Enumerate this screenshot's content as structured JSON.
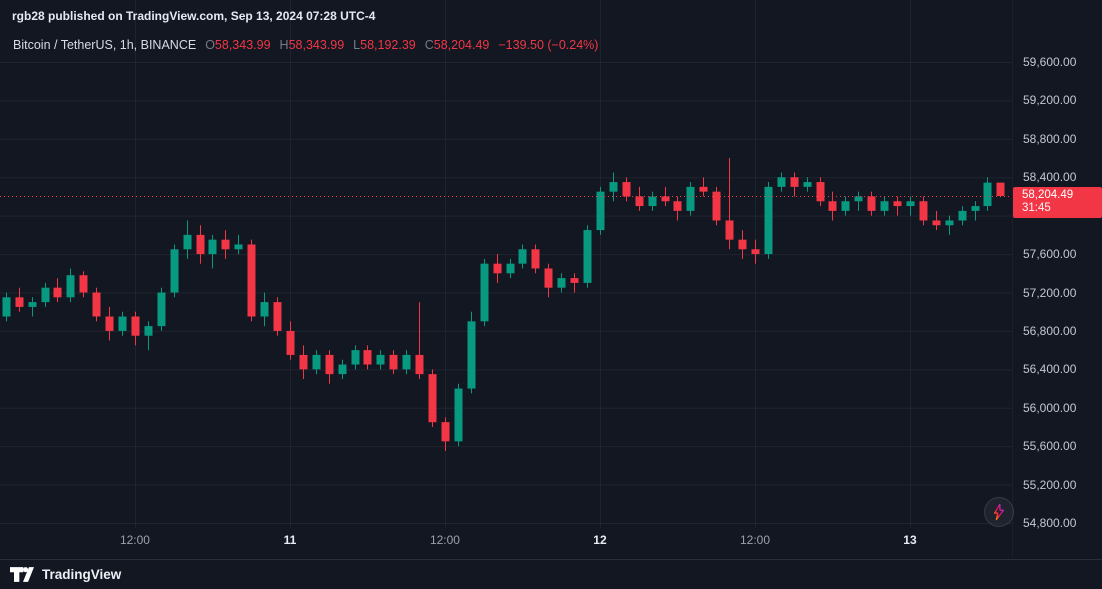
{
  "attribution": {
    "text": "rgb28 published on TradingView.com, Sep 13, 2024 07:28 UTC-4"
  },
  "legend": {
    "symbol": "Bitcoin / TetherUS, 1h, BINANCE",
    "ohlc": [
      {
        "label": "O",
        "value": "58,343.99"
      },
      {
        "label": "H",
        "value": "58,343.99"
      },
      {
        "label": "L",
        "value": "58,192.39"
      },
      {
        "label": "C",
        "value": "58,204.49"
      }
    ],
    "change": "−139.50 (−0.24%)"
  },
  "price_badge": {
    "price": "58,204.49",
    "countdown": "31:45"
  },
  "footer": {
    "brand": "TradingView"
  },
  "colors": {
    "background": "#131722",
    "grid": "rgba(240,243,250,0.06)",
    "up": "#089981",
    "down": "#f23645",
    "axis_text": "#c3c7d1",
    "badge_bg": "#f23645"
  },
  "chart_data": {
    "type": "candlestick",
    "title": "Bitcoin / TetherUS, 1h, BINANCE",
    "pair": "Bitcoin / TetherUS",
    "interval": "1h",
    "exchange": "BINANCE",
    "start_time": "Sep 10 02:00",
    "step_minutes": 60,
    "current_price": 58204.49,
    "last_candle": {
      "open": 58343.99,
      "high": 58343.99,
      "low": 58192.39,
      "close": 58204.49,
      "change": "−139.50",
      "change_pct": "−0.24%"
    },
    "y_axis": {
      "min": 54800,
      "max": 59600,
      "tick_step": 400,
      "labels": [
        {
          "text": "59,600.00",
          "value": 59600
        },
        {
          "text": "59,200.00",
          "value": 59200
        },
        {
          "text": "58,800.00",
          "value": 58800
        },
        {
          "text": "58,400.00",
          "value": 58400
        },
        {
          "text": "57,600.00",
          "value": 57600
        },
        {
          "text": "57,200.00",
          "value": 57200
        },
        {
          "text": "56,800.00",
          "value": 56800
        },
        {
          "text": "56,400.00",
          "value": 56400
        },
        {
          "text": "56,000.00",
          "value": 56000
        },
        {
          "text": "55,600.00",
          "value": 55600
        },
        {
          "text": "55,200.00",
          "value": 55200
        },
        {
          "text": "54,800.00",
          "value": 54800
        }
      ]
    },
    "x_axis": {
      "ticks": [
        {
          "text": "12:00",
          "index": 10,
          "major": false
        },
        {
          "text": "11",
          "index": 22,
          "major": true
        },
        {
          "text": "12:00",
          "index": 34,
          "major": false
        },
        {
          "text": "12",
          "index": 46,
          "major": true
        },
        {
          "text": "12:00",
          "index": 58,
          "major": false
        },
        {
          "text": "13",
          "index": 70,
          "major": true
        }
      ]
    },
    "ohlc": [
      [
        56950,
        57200,
        56900,
        57150
      ],
      [
        57150,
        57250,
        57000,
        57050
      ],
      [
        57050,
        57150,
        56950,
        57100
      ],
      [
        57100,
        57300,
        57050,
        57250
      ],
      [
        57250,
        57350,
        57100,
        57150
      ],
      [
        57150,
        57450,
        57100,
        57380
      ],
      [
        57380,
        57420,
        57150,
        57200
      ],
      [
        57200,
        57250,
        56900,
        56950
      ],
      [
        56950,
        57050,
        56700,
        56800
      ],
      [
        56800,
        57000,
        56750,
        56950
      ],
      [
        56950,
        57000,
        56650,
        56750
      ],
      [
        56750,
        56900,
        56600,
        56850
      ],
      [
        56850,
        57250,
        56800,
        57200
      ],
      [
        57200,
        57700,
        57150,
        57650
      ],
      [
        57650,
        57950,
        57550,
        57800
      ],
      [
        57800,
        57900,
        57500,
        57600
      ],
      [
        57600,
        57800,
        57450,
        57750
      ],
      [
        57750,
        57850,
        57550,
        57650
      ],
      [
        57650,
        57800,
        57600,
        57700
      ],
      [
        57700,
        57750,
        56900,
        56950
      ],
      [
        56950,
        57200,
        56850,
        57100
      ],
      [
        57100,
        57150,
        56750,
        56800
      ],
      [
        56800,
        56900,
        56500,
        56550
      ],
      [
        56550,
        56650,
        56300,
        56400
      ],
      [
        56400,
        56600,
        56350,
        56550
      ],
      [
        56550,
        56600,
        56250,
        56350
      ],
      [
        56350,
        56500,
        56300,
        56450
      ],
      [
        56450,
        56650,
        56400,
        56600
      ],
      [
        56600,
        56650,
        56400,
        56450
      ],
      [
        56450,
        56600,
        56400,
        56550
      ],
      [
        56550,
        56600,
        56350,
        56400
      ],
      [
        56400,
        56600,
        56350,
        56550
      ],
      [
        56550,
        57100,
        56300,
        56350
      ],
      [
        56350,
        56400,
        55800,
        55850
      ],
      [
        55850,
        55900,
        55550,
        55650
      ],
      [
        55650,
        56250,
        55600,
        56200
      ],
      [
        56200,
        57000,
        56150,
        56900
      ],
      [
        56900,
        57550,
        56850,
        57500
      ],
      [
        57500,
        57600,
        57300,
        57400
      ],
      [
        57400,
        57550,
        57350,
        57500
      ],
      [
        57500,
        57700,
        57450,
        57650
      ],
      [
        57650,
        57700,
        57400,
        57450
      ],
      [
        57450,
        57500,
        57150,
        57250
      ],
      [
        57250,
        57400,
        57200,
        57350
      ],
      [
        57350,
        57400,
        57200,
        57300
      ],
      [
        57300,
        57900,
        57250,
        57850
      ],
      [
        57850,
        58300,
        57800,
        58250
      ],
      [
        58250,
        58450,
        58150,
        58350
      ],
      [
        58350,
        58400,
        58150,
        58200
      ],
      [
        58200,
        58300,
        58050,
        58100
      ],
      [
        58100,
        58250,
        58050,
        58200
      ],
      [
        58200,
        58300,
        58100,
        58150
      ],
      [
        58150,
        58200,
        57950,
        58050
      ],
      [
        58050,
        58350,
        58000,
        58300
      ],
      [
        58300,
        58400,
        58200,
        58250
      ],
      [
        58250,
        58300,
        57900,
        57950
      ],
      [
        57950,
        58600,
        57650,
        57750
      ],
      [
        57750,
        57850,
        57550,
        57650
      ],
      [
        57650,
        57750,
        57500,
        57600
      ],
      [
        57600,
        58350,
        57550,
        58300
      ],
      [
        58300,
        58450,
        58250,
        58400
      ],
      [
        58400,
        58450,
        58200,
        58300
      ],
      [
        58300,
        58400,
        58250,
        58350
      ],
      [
        58350,
        58400,
        58100,
        58150
      ],
      [
        58150,
        58250,
        57950,
        58050
      ],
      [
        58050,
        58200,
        58000,
        58150
      ],
      [
        58150,
        58250,
        58050,
        58200
      ],
      [
        58200,
        58250,
        58000,
        58050
      ],
      [
        58050,
        58200,
        58000,
        58150
      ],
      [
        58150,
        58200,
        58000,
        58100
      ],
      [
        58100,
        58200,
        58000,
        58150
      ],
      [
        58150,
        58200,
        57900,
        57950
      ],
      [
        57950,
        58050,
        57850,
        57900
      ],
      [
        57900,
        58000,
        57800,
        57950
      ],
      [
        57950,
        58100,
        57900,
        58050
      ],
      [
        58050,
        58150,
        57950,
        58100
      ],
      [
        58100,
        58400,
        58050,
        58343.99
      ],
      [
        58343.99,
        58343.99,
        58192.39,
        58204.49
      ]
    ]
  }
}
